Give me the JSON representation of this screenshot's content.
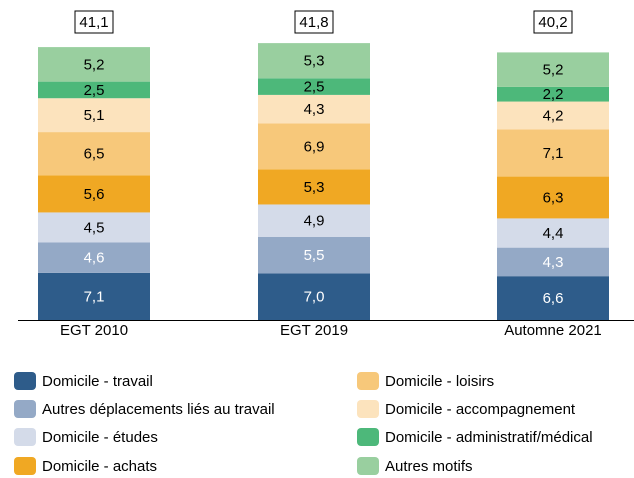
{
  "chart_data": {
    "type": "stacked_bar",
    "categories": [
      "EGT 2010",
      "EGT 2019",
      "Automne 2021"
    ],
    "totals": [
      41.1,
      41.8,
      40.2
    ],
    "total_labels": [
      "41,1",
      "41,8",
      "40,2"
    ],
    "series": [
      {
        "name": "Domicile - travail",
        "color": "#2e5c8a",
        "values": [
          7.1,
          7.0,
          6.6
        ],
        "value_labels": [
          "7,1",
          "7,0",
          "6,6"
        ]
      },
      {
        "name": "Autres déplacements liés au travail",
        "color": "#94a9c6",
        "values": [
          4.6,
          5.5,
          4.3
        ],
        "value_labels": [
          "4,6",
          "5,5",
          "4,3"
        ]
      },
      {
        "name": "Domicile - études",
        "color": "#d4dbe9",
        "values": [
          4.5,
          4.9,
          4.4
        ],
        "value_labels": [
          "4,5",
          "4,9",
          "4,4"
        ]
      },
      {
        "name": "Domicile - achats",
        "color": "#f0a823",
        "values": [
          5.6,
          5.3,
          6.3
        ],
        "value_labels": [
          "5,6",
          "5,3",
          "6,3"
        ]
      },
      {
        "name": "Domicile - loisirs",
        "color": "#f7c87a",
        "values": [
          6.5,
          6.9,
          7.1
        ],
        "value_labels": [
          "6,5",
          "6,9",
          "7,1"
        ]
      },
      {
        "name": "Domicile - accompagnement",
        "color": "#fce3bd",
        "values": [
          5.1,
          4.3,
          4.2
        ],
        "value_labels": [
          "5,1",
          "4,3",
          "4,2"
        ]
      },
      {
        "name": "Domicile - administratif/médical",
        "color": "#4db87a",
        "values": [
          2.5,
          2.5,
          2.2
        ],
        "value_labels": [
          "2,5",
          "2,5",
          "2,2"
        ]
      },
      {
        "name": "Autres motifs",
        "color": "#99cf9f",
        "values": [
          5.2,
          5.3,
          5.2
        ],
        "value_labels": [
          "5,2",
          "5,3",
          "5,2"
        ]
      }
    ]
  }
}
